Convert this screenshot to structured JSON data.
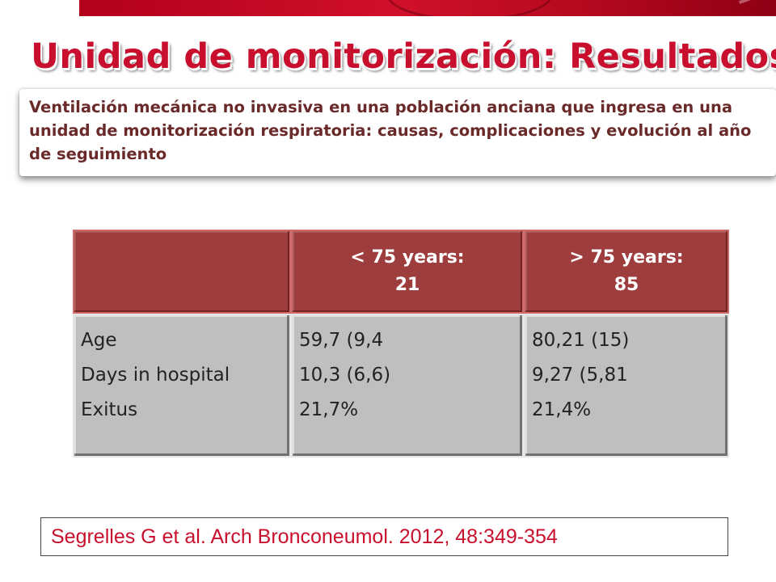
{
  "slide": {
    "title": "Unidad de monitorización: Resultados",
    "reference_title": "Ventilación mecánica no invasiva en una población anciana que ingresa en una unidad de monitorización respiratoria: causas, complicaciones y evolución al año de seguimiento",
    "citation": "Segrelles G et al. Arch Bronconeumol. 2012, 48:349-354",
    "colors": {
      "title": "#c8102e",
      "header_fill": "#9e3d3d",
      "body_fill": "#bfbfbf",
      "citation_text": "#c8102e",
      "banner": "#c8102e"
    }
  },
  "table": {
    "headers": [
      {
        "line1": "",
        "line2": ""
      },
      {
        "line1": "< 75 years:",
        "line2": "21"
      },
      {
        "line1": "> 75 years:",
        "line2": "85"
      }
    ],
    "row_labels": [
      "Age",
      "Days in hospital",
      "Exitus"
    ],
    "group_lt75": [
      "59,7 (9,4",
      "10,3 (6,6)",
      "21,7%"
    ],
    "group_gt75": [
      "80,21 (15)",
      "9,27 (5,81",
      "21,4%"
    ]
  }
}
